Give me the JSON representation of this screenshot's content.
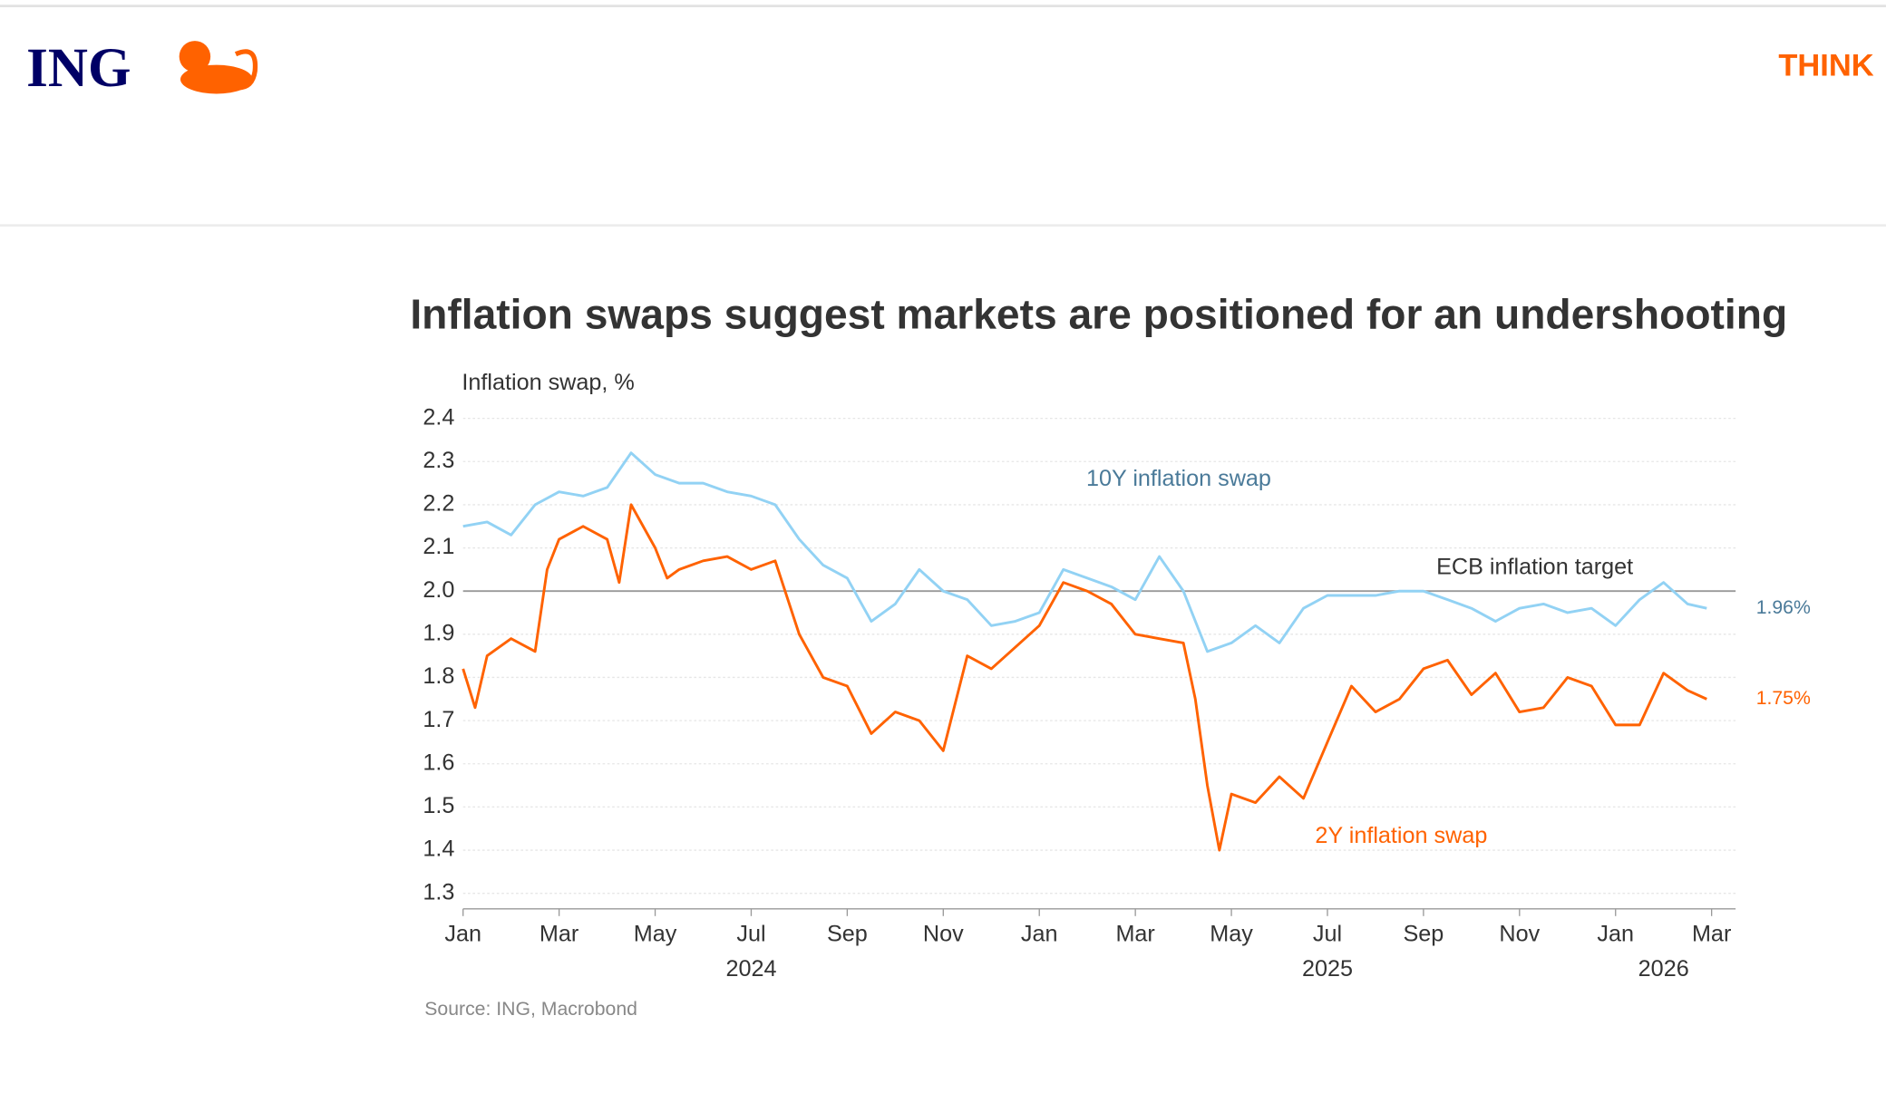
{
  "header": {
    "logo": "ING",
    "nav": "THINK"
  },
  "chart_data": {
    "type": "line",
    "title": "Inflation swaps suggest markets are positioned for an undershooting",
    "y_label": "Inflation swap, %",
    "source": "Source: ING, Macrobond",
    "xlim": [
      0,
      26.5
    ],
    "xticks": [
      {
        "value": 0,
        "label": "Jan"
      },
      {
        "value": 2,
        "label": "Mar"
      },
      {
        "value": 4,
        "label": "May"
      },
      {
        "value": 6,
        "label": "Jul"
      },
      {
        "value": 8,
        "label": "Sep"
      },
      {
        "value": 10,
        "label": "Nov"
      },
      {
        "value": 12,
        "label": "Jan"
      },
      {
        "value": 14,
        "label": "Mar"
      },
      {
        "value": 16,
        "label": "May"
      },
      {
        "value": 18,
        "label": "Jul"
      },
      {
        "value": 20,
        "label": "Sep"
      },
      {
        "value": 22,
        "label": "Nov"
      },
      {
        "value": 24,
        "label": "Jan"
      },
      {
        "value": 26,
        "label": "Mar"
      }
    ],
    "x_years": [
      {
        "value": 6,
        "label": "2024"
      },
      {
        "value": 18,
        "label": "2025"
      },
      {
        "value": 25,
        "label": "2026"
      }
    ],
    "ylim": [
      1.264,
      2.4
    ],
    "yticks": [
      1.3,
      1.4,
      1.5,
      1.6,
      1.7,
      1.8,
      1.9,
      {
        "value": 2,
        "label": "2.0"
      },
      2.1,
      2.2,
      2.3,
      2.4
    ],
    "grid": true,
    "reference_line": {
      "value": 2,
      "label": "ECB inflation target",
      "color": "#999999"
    },
    "series": [
      {
        "name": "10Y inflation swap",
        "color": "#92d2f4",
        "label_color": "#4a7a99",
        "end_label": "1.96%",
        "x": [
          0,
          0.5,
          1,
          1.5,
          2,
          2.5,
          3,
          3.5,
          4,
          4.5,
          5,
          5.5,
          6,
          6.5,
          7,
          7.5,
          8,
          8.5,
          9,
          9.5,
          10,
          10.5,
          11,
          11.5,
          12,
          12.5,
          13,
          13.5,
          14,
          14.5,
          15,
          15.5,
          16,
          16.5,
          17,
          17.5,
          18,
          18.5,
          19,
          19.5,
          20,
          20.5,
          21,
          21.5,
          22,
          22.5,
          23,
          23.5,
          24,
          24.5,
          25,
          25.5,
          25.9
        ],
        "values": [
          2.15,
          2.16,
          2.13,
          2.2,
          2.23,
          2.22,
          2.24,
          2.32,
          2.27,
          2.25,
          2.25,
          2.23,
          2.22,
          2.2,
          2.12,
          2.06,
          2.03,
          1.93,
          1.97,
          2.05,
          2.0,
          1.98,
          1.92,
          1.93,
          1.95,
          2.05,
          2.03,
          2.01,
          1.98,
          2.08,
          2.0,
          1.86,
          1.88,
          1.92,
          1.88,
          1.96,
          1.99,
          1.99,
          1.99,
          2.0,
          2.0,
          1.98,
          1.96,
          1.93,
          1.96,
          1.97,
          1.95,
          1.96,
          1.92,
          1.98,
          2.02,
          1.97,
          1.96
        ]
      },
      {
        "name": "2Y inflation swap",
        "color": "#ff6200",
        "label_color": "#ff6200",
        "end_label": "1.75%",
        "x": [
          0,
          0.25,
          0.5,
          1,
          1.5,
          1.75,
          2,
          2.5,
          3,
          3.25,
          3.5,
          4,
          4.25,
          4.5,
          5,
          5.5,
          6,
          6.5,
          7,
          7.5,
          8,
          8.5,
          9,
          9.5,
          10,
          10.5,
          11,
          11.5,
          12,
          12.5,
          13,
          13.5,
          14,
          14.5,
          15,
          15.25,
          15.5,
          15.75,
          16,
          16.5,
          17,
          17.5,
          18,
          18.5,
          19,
          19.5,
          20,
          20.5,
          21,
          21.5,
          22,
          22.5,
          23,
          23.5,
          24,
          24.5,
          25,
          25.5,
          25.9
        ],
        "values": [
          1.82,
          1.73,
          1.85,
          1.89,
          1.86,
          2.05,
          2.12,
          2.15,
          2.12,
          2.02,
          2.2,
          2.1,
          2.03,
          2.05,
          2.07,
          2.08,
          2.05,
          2.07,
          1.9,
          1.8,
          1.78,
          1.67,
          1.72,
          1.7,
          1.63,
          1.85,
          1.82,
          1.87,
          1.92,
          2.02,
          2.0,
          1.97,
          1.9,
          1.89,
          1.88,
          1.75,
          1.55,
          1.4,
          1.53,
          1.51,
          1.57,
          1.52,
          1.65,
          1.78,
          1.72,
          1.75,
          1.82,
          1.84,
          1.76,
          1.81,
          1.72,
          1.73,
          1.8,
          1.78,
          1.69,
          1.69,
          1.81,
          1.77,
          1.75
        ]
      }
    ]
  }
}
